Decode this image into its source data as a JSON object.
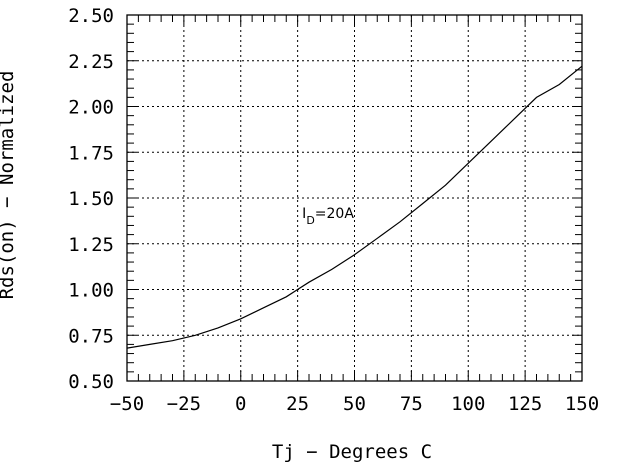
{
  "chart_data": {
    "type": "line",
    "title": "",
    "xlabel": "Tj − Degrees C",
    "ylabel": "Rds(on) − Normalized",
    "xlim": [
      -50,
      150
    ],
    "ylim": [
      0.5,
      2.5
    ],
    "grid": true,
    "x_ticks": [
      "−50",
      "−25",
      "0",
      "25",
      "50",
      "75",
      "100",
      "125",
      "150"
    ],
    "y_ticks": [
      "0.50",
      "0.75",
      "1.00",
      "1.25",
      "1.50",
      "1.75",
      "2.00",
      "2.25",
      "2.50"
    ],
    "annotation": {
      "symbol": "I",
      "subscript": "D",
      "rest": "=20A",
      "x": 27,
      "y": 1.39
    },
    "series": [
      {
        "x": [
          -50,
          -40,
          -30,
          -20,
          -10,
          0,
          10,
          20,
          25,
          30,
          40,
          50,
          60,
          70,
          80,
          90,
          100,
          110,
          120,
          130,
          140,
          150
        ],
        "values": [
          0.68,
          0.7,
          0.72,
          0.75,
          0.79,
          0.84,
          0.9,
          0.96,
          1.0,
          1.04,
          1.11,
          1.19,
          1.28,
          1.37,
          1.47,
          1.57,
          1.69,
          1.81,
          1.93,
          2.05,
          2.12,
          2.22
        ]
      }
    ]
  }
}
